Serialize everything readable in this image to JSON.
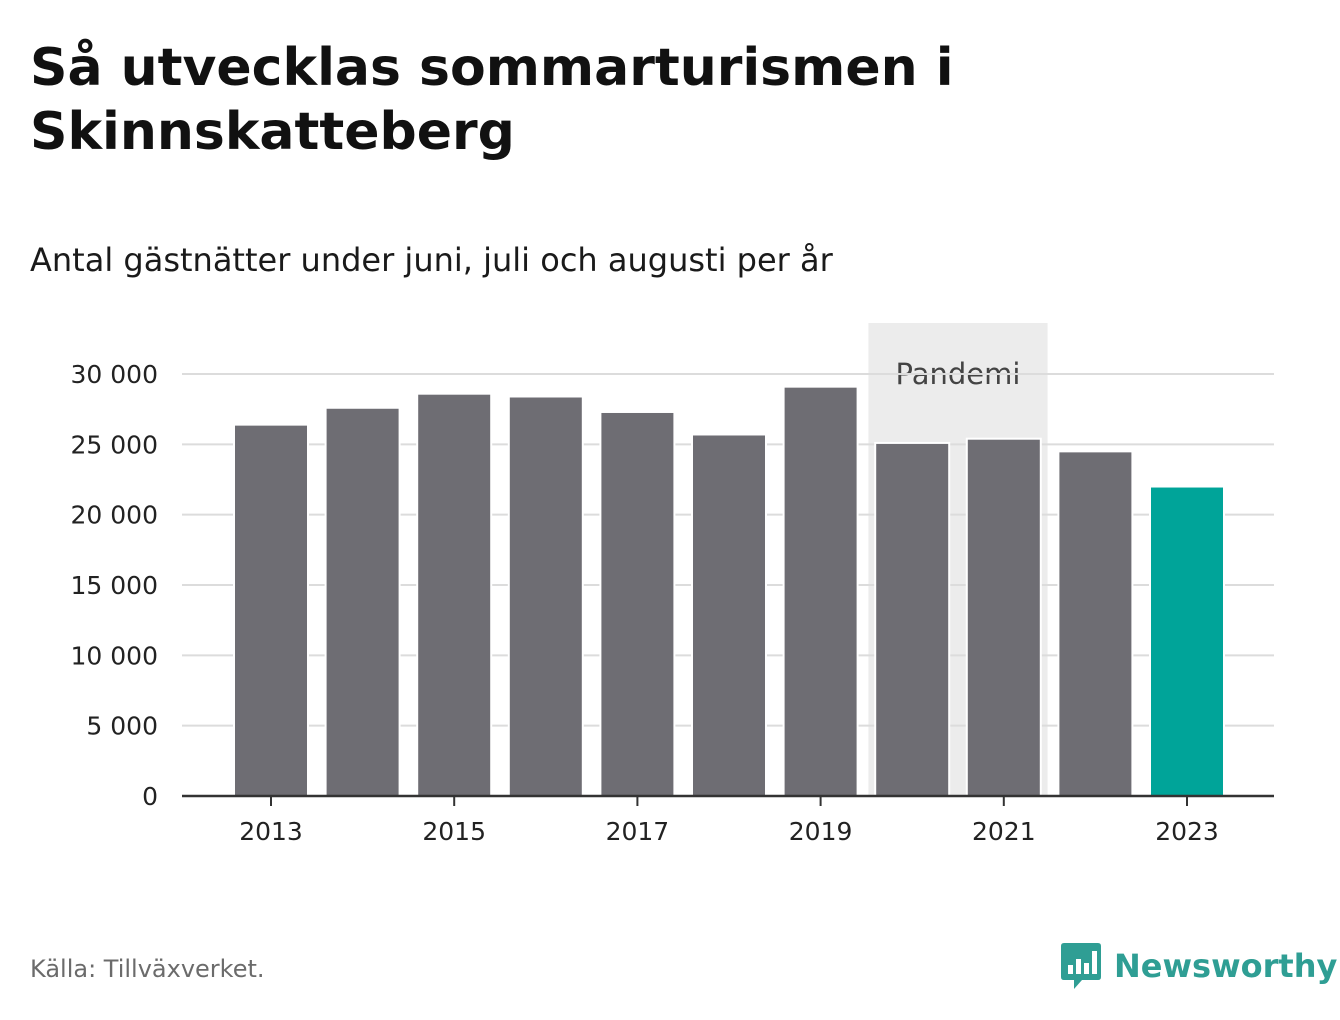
{
  "title": "Så utvecklas sommarturismen i Skinnskatteberg",
  "subtitle": "Antal gästnätter under juni, juli och augusti per år",
  "source": "Källa: Tillväxverket.",
  "brand": {
    "name": "Newsworthy",
    "icon": "newsworthy-logo-icon",
    "color": "#2f9e94"
  },
  "chart_data": {
    "type": "bar",
    "categories": [
      "2013",
      "2014",
      "2015",
      "2016",
      "2017",
      "2018",
      "2019",
      "2020",
      "2021",
      "2022",
      "2023"
    ],
    "values": [
      26400,
      27600,
      28600,
      28400,
      27300,
      25700,
      29100,
      25100,
      25400,
      24500,
      22000
    ],
    "x_tick_labels": [
      "2013",
      "2015",
      "2017",
      "2019",
      "2021",
      "2023"
    ],
    "y_ticks": [
      0,
      5000,
      10000,
      15000,
      20000,
      25000,
      30000
    ],
    "y_tick_labels": [
      "0",
      "5 000",
      "10 000",
      "15 000",
      "20 000",
      "25 000",
      "30 000"
    ],
    "ylim": [
      0,
      30000
    ],
    "grid": true,
    "bar_color": "#6e6d73",
    "highlight_category": "2023",
    "highlight_color": "#00a499",
    "annotation": {
      "label": "Pandemi",
      "from": "2020",
      "to": "2021",
      "color": "#ececec"
    }
  }
}
